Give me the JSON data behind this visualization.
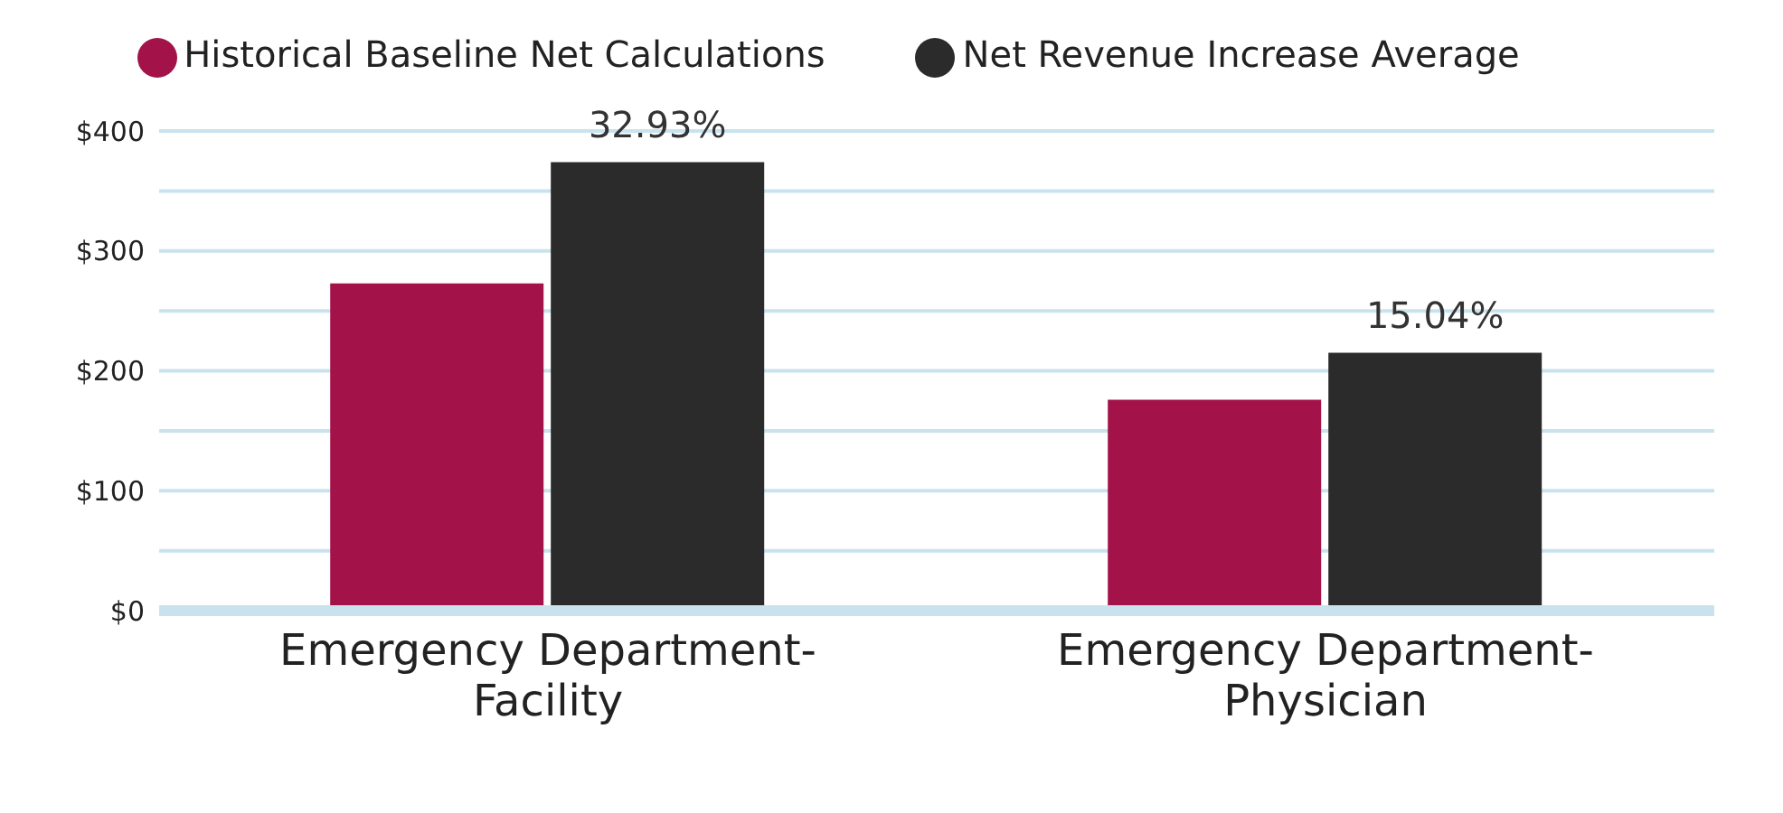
{
  "chart_data": {
    "type": "bar",
    "categories": [
      "Emergency Department-Facility",
      "Emergency Department-Physician"
    ],
    "series": [
      {
        "name": "Historical Baseline Net Calculations",
        "color": "#a3134a",
        "values": [
          273,
          176
        ]
      },
      {
        "name": "Net Revenue Increase Average",
        "color": "#2b2b2b",
        "values": [
          374,
          215
        ]
      }
    ],
    "ylim": [
      0,
      400
    ],
    "yticks": [
      {
        "value": 0,
        "label": "$0"
      },
      {
        "value": 50,
        "label": null
      },
      {
        "value": 100,
        "label": "$100"
      },
      {
        "value": 150,
        "label": null
      },
      {
        "value": 200,
        "label": "$200"
      },
      {
        "value": 250,
        "label": null
      },
      {
        "value": 300,
        "label": "$300"
      },
      {
        "value": 350,
        "label": null
      },
      {
        "value": 400,
        "label": "$400"
      }
    ],
    "grid": "y",
    "legend": "top",
    "annotations": [
      {
        "text": "32.93%",
        "x": "Emergency Department-Facility",
        "y": 374
      },
      {
        "text": "15.04%",
        "x": "Emergency Department-Physician",
        "y": 215
      }
    ]
  }
}
